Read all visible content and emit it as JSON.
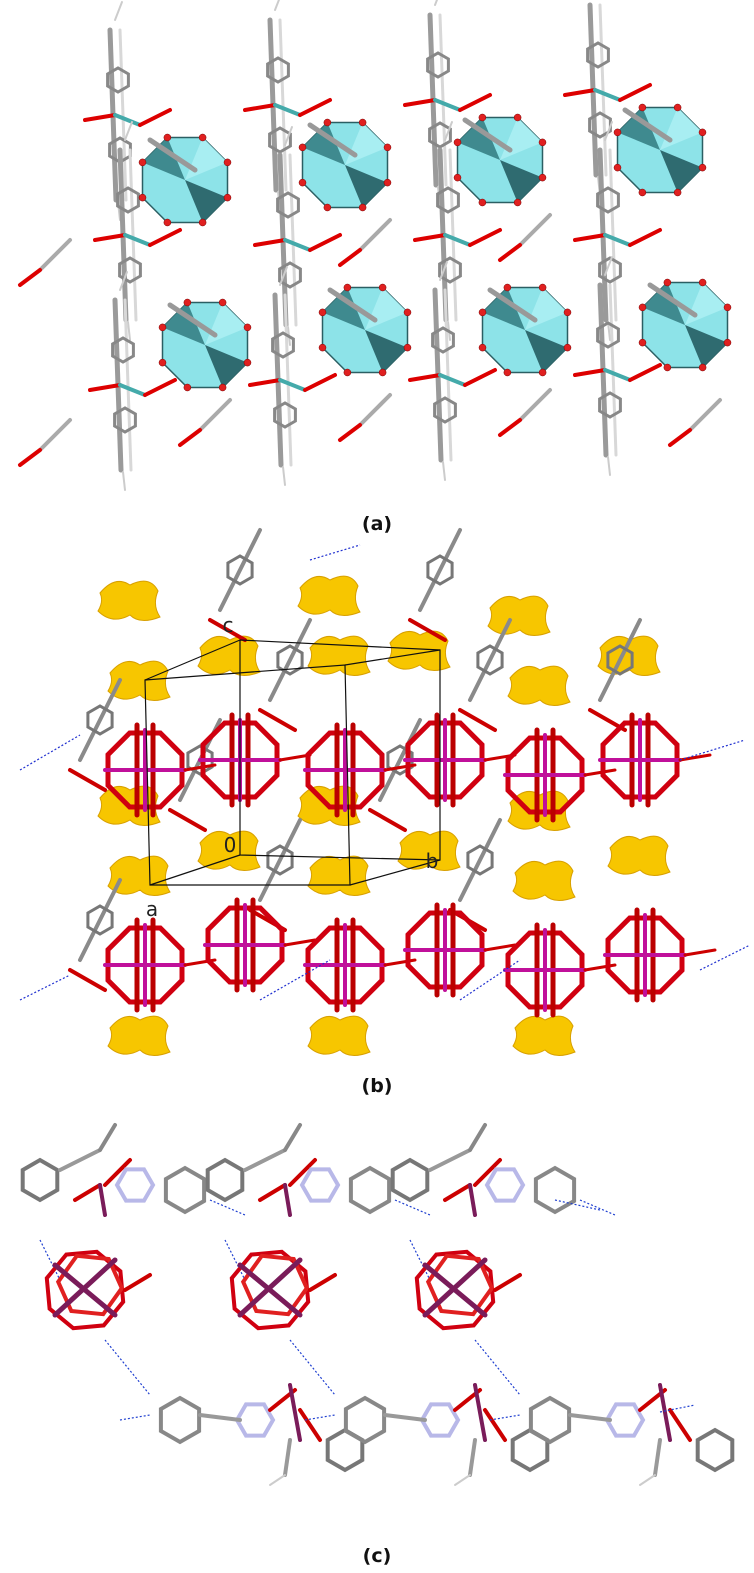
{
  "panels": [
    {
      "label": "(a)"
    },
    {
      "label": "(b)",
      "axis_labels": [
        "c",
        "0",
        "b",
        "a"
      ]
    },
    {
      "label": "(c)"
    }
  ]
}
